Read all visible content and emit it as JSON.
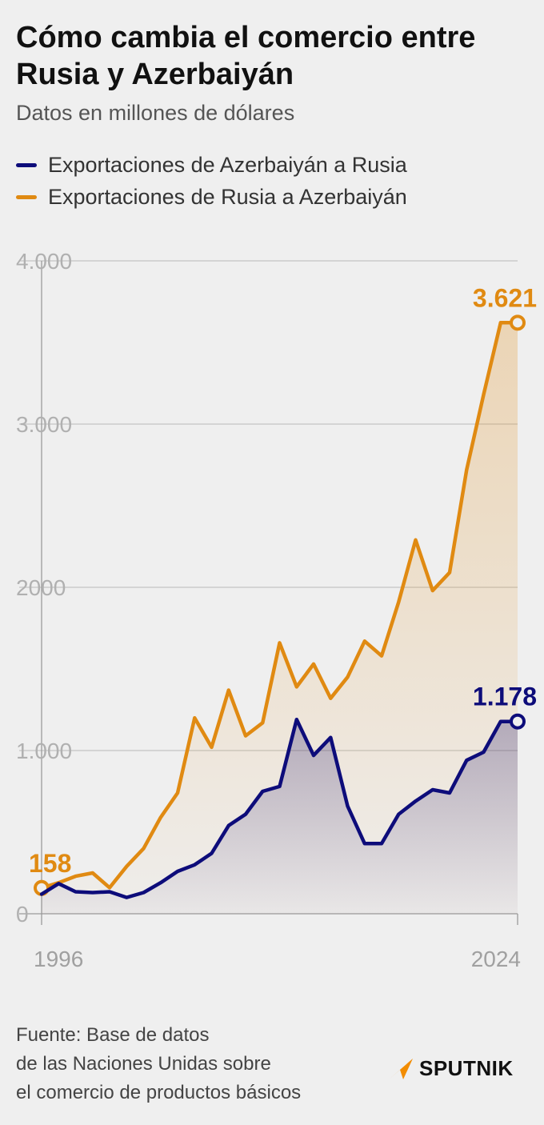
{
  "title": "Cómo cambia el comercio entre Rusia y Azerbaiyán",
  "subtitle": "Datos en millones de dólares",
  "legend": [
    {
      "label": "Exportaciones de Azerbaiyán a Rusia",
      "color": "#0d0c7a"
    },
    {
      "label": "Exportaciones de Rusia a Azerbaiyán",
      "color": "#e08a12"
    }
  ],
  "chart_data": {
    "type": "area",
    "x": [
      1996,
      1997,
      1998,
      1999,
      2000,
      2001,
      2002,
      2003,
      2004,
      2005,
      2006,
      2007,
      2008,
      2009,
      2010,
      2011,
      2012,
      2013,
      2014,
      2015,
      2016,
      2017,
      2018,
      2019,
      2020,
      2021,
      2022,
      2023,
      2024
    ],
    "series": [
      {
        "name": "Exportaciones de Rusia a Azerbaiyán",
        "color": "#e08a12",
        "values": [
          158,
          190,
          230,
          250,
          160,
          290,
          400,
          590,
          740,
          1200,
          1020,
          1370,
          1090,
          1170,
          1660,
          1390,
          1530,
          1320,
          1450,
          1670,
          1580,
          1910,
          2290,
          1980,
          2090,
          2720,
          3180,
          3621,
          3621
        ],
        "start_label": "158",
        "end_label": "3.621"
      },
      {
        "name": "Exportaciones de Azerbaiyán a Rusia",
        "color": "#0d0c7a",
        "values": [
          120,
          185,
          135,
          130,
          135,
          100,
          130,
          190,
          260,
          300,
          370,
          540,
          610,
          750,
          780,
          1190,
          970,
          1080,
          660,
          430,
          430,
          610,
          690,
          760,
          740,
          940,
          990,
          1178,
          1178
        ],
        "end_label": "1.178"
      }
    ],
    "y_ticks": [
      {
        "value": 0,
        "label": "0"
      },
      {
        "value": 1000,
        "label": "1.000"
      },
      {
        "value": 2000,
        "label": "2000"
      },
      {
        "value": 3000,
        "label": "3.000"
      },
      {
        "value": 4000,
        "label": "4.000"
      }
    ],
    "x_tick_labels": [
      {
        "value": 1996,
        "label": "1996"
      },
      {
        "value": 2024,
        "label": "2024"
      }
    ],
    "ylim": [
      0,
      4000
    ],
    "xlim": [
      1996,
      2024
    ],
    "grid": true
  },
  "source": {
    "lines": [
      "Fuente: Base de datos",
      "de las Naciones Unidas sobre",
      "el comercio de productos básicos"
    ]
  },
  "brand": {
    "name": "SPUTNIK",
    "color": "#f28c00"
  }
}
